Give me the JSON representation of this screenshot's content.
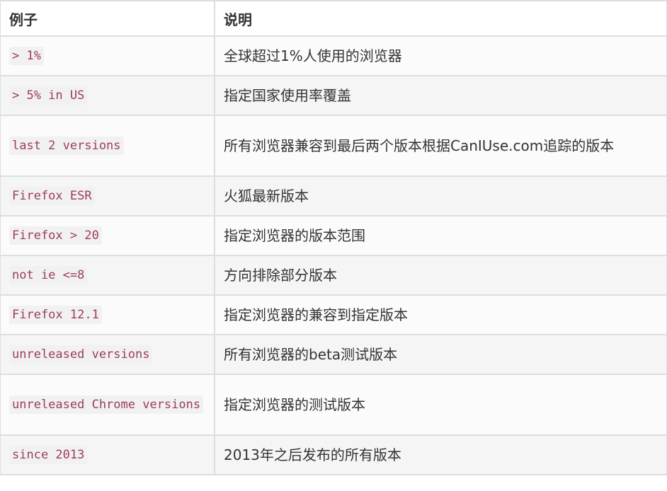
{
  "table": {
    "headers": [
      "例子",
      "说明"
    ],
    "rows": [
      {
        "example": "> 1%",
        "description": "全球超过1%人使用的浏览器"
      },
      {
        "example": "> 5% in US",
        "description": "指定国家使用率覆盖"
      },
      {
        "example": "last 2 versions",
        "description": "所有浏览器兼容到最后两个版本根据CanIUse.com追踪的版本"
      },
      {
        "example": "Firefox ESR",
        "description": "火狐最新版本"
      },
      {
        "example": "Firefox > 20",
        "description": "指定浏览器的版本范围"
      },
      {
        "example": "not ie <=8",
        "description": "方向排除部分版本"
      },
      {
        "example": "Firefox 12.1",
        "description": "指定浏览器的兼容到指定版本"
      },
      {
        "example": "unreleased versions",
        "description": "所有浏览器的beta测试版本"
      },
      {
        "example": "unreleased Chrome versions",
        "description": "指定浏览器的测试版本"
      },
      {
        "example": "since 2013",
        "description": "2013年之后发布的所有版本"
      }
    ]
  }
}
